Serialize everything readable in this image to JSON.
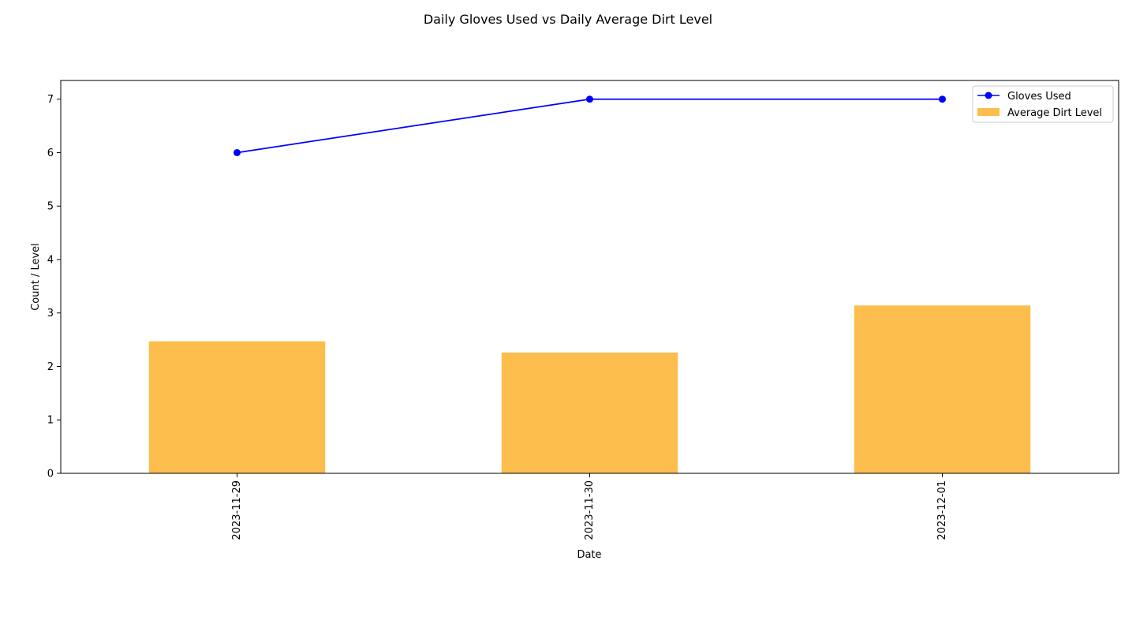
{
  "chart_data": {
    "type": "bar",
    "title": "Daily Gloves Used vs Daily Average Dirt Level",
    "xlabel": "Date",
    "ylabel": "Count / Level",
    "categories": [
      "2023-11-29",
      "2023-11-30",
      "2023-12-01"
    ],
    "ylim": [
      0,
      7.35
    ],
    "yticks": [
      0,
      1,
      2,
      3,
      4,
      5,
      6,
      7
    ],
    "grid": false,
    "legend_position": "top-right",
    "series": [
      {
        "name": "Gloves Used",
        "kind": "line",
        "marker": "circle",
        "color": "#0000ff",
        "values": [
          6,
          7,
          7
        ]
      },
      {
        "name": "Average Dirt Level",
        "kind": "bar",
        "color": "#fdbd4c",
        "values": [
          2.47,
          2.26,
          3.14
        ]
      }
    ]
  }
}
